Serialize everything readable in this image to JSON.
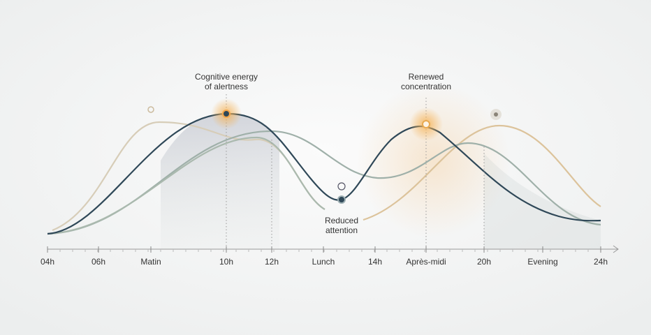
{
  "axis": {
    "labels": [
      "04h",
      "06h",
      "Matin",
      "10h",
      "12h",
      "Lunch",
      "14h",
      "Après-midi",
      "20h",
      "Evening",
      "24h"
    ]
  },
  "annotations": {
    "peak": [
      "Cognitive energy",
      "of alertness"
    ],
    "dip": [
      "Reduced",
      "attention"
    ],
    "renewed": [
      "Renewed",
      "concentration"
    ]
  }
}
